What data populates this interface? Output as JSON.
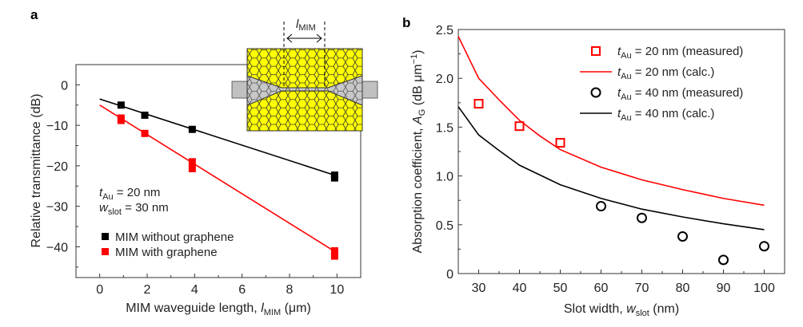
{
  "chart_data": [
    {
      "panel_label": "a",
      "type": "scatter",
      "xlabel": {
        "text": "MIM waveguide length, ",
        "var": "l",
        "sub": "MIM",
        "unit": " (μm)"
      },
      "ylabel": "Relative transmittance (dB)",
      "xlim": [
        -1,
        11
      ],
      "ylim": [
        -47.6,
        5
      ],
      "xticks": [
        0,
        2,
        4,
        6,
        8,
        10
      ],
      "yticks": [
        0,
        -10,
        -20,
        -30,
        -40
      ],
      "yticklabels": [
        "0",
        "−10",
        "−20",
        "−30",
        "−40"
      ],
      "annotation": [
        {
          "var": "t",
          "sub": "Au",
          "rest": " = 20 nm"
        },
        {
          "var": "w",
          "sub": "slot",
          "rest": " = 30 nm"
        }
      ],
      "inset_label": {
        "var": "l",
        "sub": "MIM"
      },
      "legend_placement": "bottom-left",
      "series": [
        {
          "name": "MIM without graphene",
          "color": "#000000",
          "marker": "filled-square",
          "points": [
            [
              0.9,
              -5.0
            ],
            [
              1.9,
              -7.5
            ],
            [
              3.9,
              -11.0
            ],
            [
              9.9,
              -22.3
            ],
            [
              9.9,
              -23.0
            ]
          ],
          "fit": [
            [
              0,
              -3.5
            ],
            [
              10,
              -22.5
            ]
          ]
        },
        {
          "name": "MIM with graphene",
          "color": "#ff0000",
          "marker": "filled-square",
          "points": [
            [
              0.9,
              -8.2
            ],
            [
              0.9,
              -8.8
            ],
            [
              1.9,
              -12.0
            ],
            [
              3.9,
              -19.0
            ],
            [
              3.9,
              -20.7
            ],
            [
              9.9,
              -41.0
            ],
            [
              9.9,
              -42.3
            ]
          ],
          "fit": [
            [
              0,
              -5.0
            ],
            [
              10,
              -41.5
            ]
          ]
        }
      ]
    },
    {
      "panel_label": "b",
      "type": "line",
      "xlabel": {
        "text": "Slot width, ",
        "var": "w",
        "sub": "slot",
        "unit": " (nm)"
      },
      "ylabel": {
        "text": "Absorption coefficient, ",
        "var": "A",
        "sub": "G",
        "unit_pre": " (dB μm",
        "sup": "−1",
        "unit_post": ")"
      },
      "xlim": [
        25,
        105
      ],
      "ylim": [
        0,
        2.5
      ],
      "xticks": [
        30,
        40,
        50,
        60,
        70,
        80,
        90,
        100
      ],
      "yticks": [
        0,
        0.5,
        1.0,
        1.5,
        2.0,
        2.5
      ],
      "yticklabels": [
        "0",
        "0.5",
        "1.0",
        "1.5",
        "2.0",
        "2.5"
      ],
      "legend_placement": "top-right",
      "series": [
        {
          "name": {
            "var": "t",
            "sub": "Au",
            "rest": " = 20 nm (measured)"
          },
          "color": "#ff0000",
          "marker": "open-square",
          "x": [
            30,
            40,
            50
          ],
          "y": [
            1.74,
            1.51,
            1.34
          ]
        },
        {
          "name": {
            "var": "t",
            "sub": "Au",
            "rest": " = 20 nm (calc.)"
          },
          "color": "#ff0000",
          "marker": "line",
          "x": [
            25,
            30,
            35,
            40,
            45,
            50,
            60,
            70,
            80,
            90,
            100
          ],
          "y": [
            2.43,
            2.0,
            1.78,
            1.57,
            1.41,
            1.27,
            1.09,
            0.96,
            0.86,
            0.77,
            0.7
          ]
        },
        {
          "name": {
            "var": "t",
            "sub": "Au",
            "rest": " = 40 nm (measured)"
          },
          "color": "#000000",
          "marker": "open-circle",
          "x": [
            60,
            70,
            80,
            90,
            100
          ],
          "y": [
            0.69,
            0.57,
            0.38,
            0.14,
            0.28
          ]
        },
        {
          "name": {
            "var": "t",
            "sub": "Au",
            "rest": " = 40 nm (calc.)"
          },
          "color": "#000000",
          "marker": "line",
          "x": [
            25,
            30,
            35,
            40,
            45,
            50,
            60,
            70,
            80,
            90,
            100
          ],
          "y": [
            1.71,
            1.42,
            1.26,
            1.11,
            1.01,
            0.91,
            0.77,
            0.66,
            0.58,
            0.51,
            0.45
          ]
        }
      ]
    }
  ]
}
